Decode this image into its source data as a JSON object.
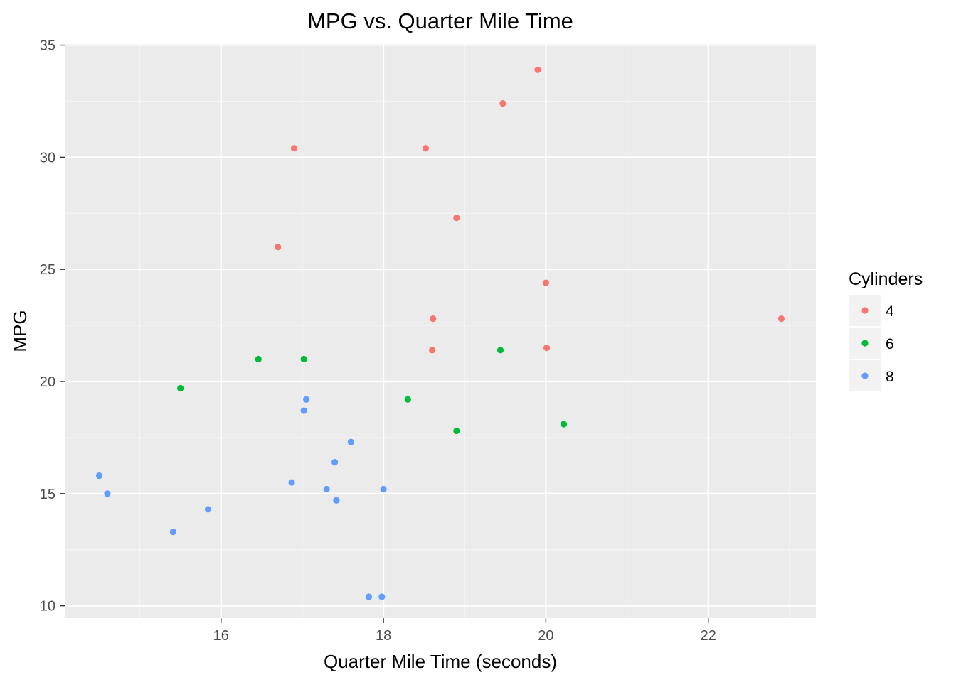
{
  "chart_data": {
    "type": "scatter",
    "title": "MPG vs. Quarter Mile Time",
    "xlabel": "Quarter Mile Time (seconds)",
    "ylabel": "MPG",
    "xlim": [
      14.075,
      23.325
    ],
    "ylim": [
      9.45,
      35.05
    ],
    "x_ticks": [
      16,
      18,
      20,
      22
    ],
    "y_ticks": [
      10,
      15,
      20,
      25,
      30,
      35
    ],
    "x_tick_labels": [
      "16",
      "18",
      "20",
      "22"
    ],
    "y_tick_labels": [
      "10",
      "15",
      "20",
      "25",
      "30",
      "35"
    ],
    "grid": true,
    "legend": {
      "title": "Cylinders",
      "position": "right"
    },
    "series": [
      {
        "name": "4",
        "color": "#F8766D",
        "points": [
          {
            "x": 18.61,
            "y": 22.8
          },
          {
            "x": 20.0,
            "y": 24.4
          },
          {
            "x": 22.9,
            "y": 22.8
          },
          {
            "x": 19.47,
            "y": 32.4
          },
          {
            "x": 18.52,
            "y": 30.4
          },
          {
            "x": 19.9,
            "y": 33.9
          },
          {
            "x": 20.01,
            "y": 21.5
          },
          {
            "x": 18.9,
            "y": 27.3
          },
          {
            "x": 16.7,
            "y": 26.0
          },
          {
            "x": 16.9,
            "y": 30.4
          },
          {
            "x": 18.6,
            "y": 21.4
          }
        ]
      },
      {
        "name": "6",
        "color": "#00BA38",
        "points": [
          {
            "x": 16.46,
            "y": 21.0
          },
          {
            "x": 17.02,
            "y": 21.0
          },
          {
            "x": 19.44,
            "y": 21.4
          },
          {
            "x": 20.22,
            "y": 18.1
          },
          {
            "x": 18.3,
            "y": 19.2
          },
          {
            "x": 18.9,
            "y": 17.8
          },
          {
            "x": 15.5,
            "y": 19.7
          }
        ]
      },
      {
        "name": "8",
        "color": "#619CFF",
        "points": [
          {
            "x": 17.02,
            "y": 18.7
          },
          {
            "x": 15.84,
            "y": 14.3
          },
          {
            "x": 17.4,
            "y": 16.4
          },
          {
            "x": 17.6,
            "y": 17.3
          },
          {
            "x": 18.0,
            "y": 15.2
          },
          {
            "x": 17.98,
            "y": 10.4
          },
          {
            "x": 17.82,
            "y": 10.4
          },
          {
            "x": 16.87,
            "y": 15.5
          },
          {
            "x": 17.3,
            "y": 15.2
          },
          {
            "x": 15.41,
            "y": 13.3
          },
          {
            "x": 17.05,
            "y": 19.2
          },
          {
            "x": 14.5,
            "y": 15.8
          },
          {
            "x": 14.6,
            "y": 15.0
          },
          {
            "x": 17.42,
            "y": 14.7
          }
        ]
      }
    ]
  }
}
